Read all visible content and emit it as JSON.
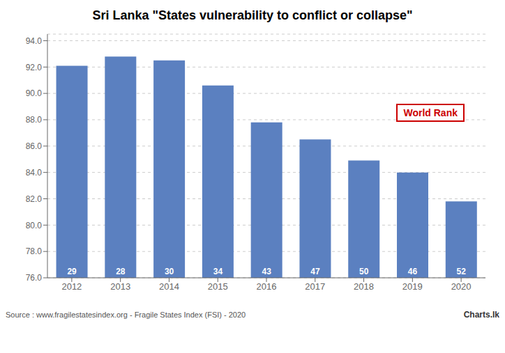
{
  "chart_data": {
    "type": "bar",
    "title": "Sri Lanka \"States vulnerability to conflict or collapse\"",
    "categories": [
      2012,
      2013,
      2014,
      2015,
      2016,
      2017,
      2018,
      2019,
      2020
    ],
    "values": [
      92.1,
      92.8,
      92.5,
      90.6,
      87.8,
      86.5,
      84.9,
      84.0,
      81.8
    ],
    "ranks": [
      29,
      28,
      30,
      34,
      43,
      47,
      50,
      46,
      52
    ],
    "color": "#5b80c0",
    "ylim": [
      76.0,
      94.5
    ],
    "yticks": [
      {
        "value": 76.0,
        "label": "76.0"
      },
      {
        "value": 78.0,
        "label": "78.0"
      },
      {
        "value": 80.0,
        "label": "80.0"
      },
      {
        "value": 82.0,
        "label": "82.0"
      },
      {
        "value": 84.0,
        "label": "84.0"
      },
      {
        "value": 86.0,
        "label": "86.0"
      },
      {
        "value": 88.0,
        "label": "88.0"
      },
      {
        "value": 90.0,
        "label": "90.0"
      },
      {
        "value": 92.0,
        "label": "92.0"
      },
      {
        "value": 94.0,
        "label": "94.0"
      }
    ],
    "grid": true,
    "annotation": {
      "text": "World Rank",
      "color": "#cc0000"
    },
    "source": "Source : www.fragilestatesindex.org - Fragile States Index (FSI) - 2020",
    "logo_text": "Charts.lk"
  }
}
